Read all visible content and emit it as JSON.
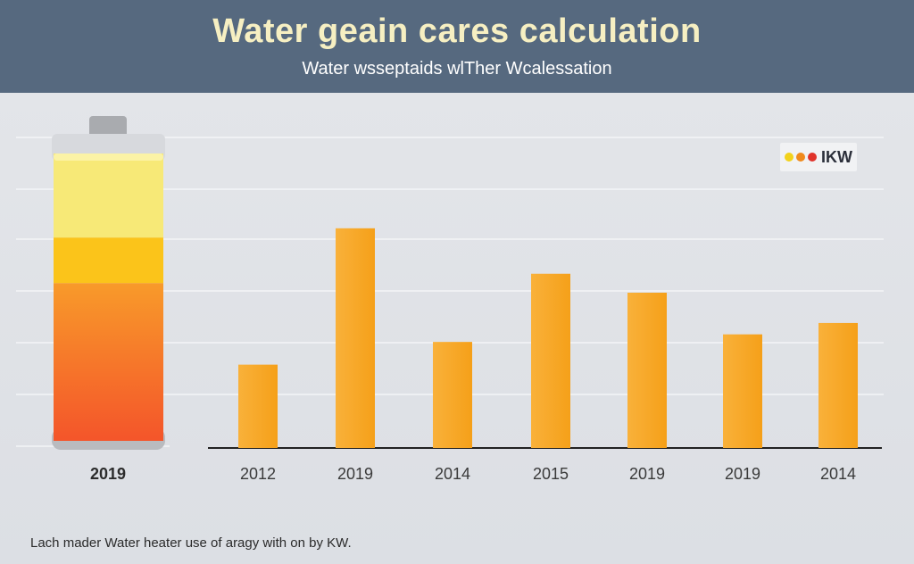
{
  "header": {
    "title": "Water geain cares calculation",
    "subtitle": "Water wsseptaids wlTher Wcalessation"
  },
  "legend": {
    "label": "IKW",
    "dot_colors": [
      "#f2d21b",
      "#f08a1c",
      "#e0332b"
    ]
  },
  "footnote": "Lach mader Water heater use of aragy with on by KW.",
  "chart_data": {
    "type": "bar",
    "title": "Water geain cares calculation",
    "subtitle": "Water wsseptaids wlTher Wcalessation",
    "categories": [
      "2012",
      "2019",
      "2014",
      "2015",
      "2019",
      "2019",
      "2014"
    ],
    "values": [
      22,
      58,
      28,
      46,
      41,
      30,
      33
    ],
    "ylim": [
      0,
      90
    ],
    "grid": true,
    "legend": {
      "label": "IKW",
      "position": "top-right"
    },
    "bar_color": "#f7a81e",
    "tank": {
      "label": "2019",
      "segments": [
        {
          "color": "#f7e977",
          "value": 24
        },
        {
          "color": "#fbc41a",
          "value": 13
        },
        {
          "color": "#f76a1e",
          "value": 45
        }
      ],
      "total": 82
    }
  }
}
